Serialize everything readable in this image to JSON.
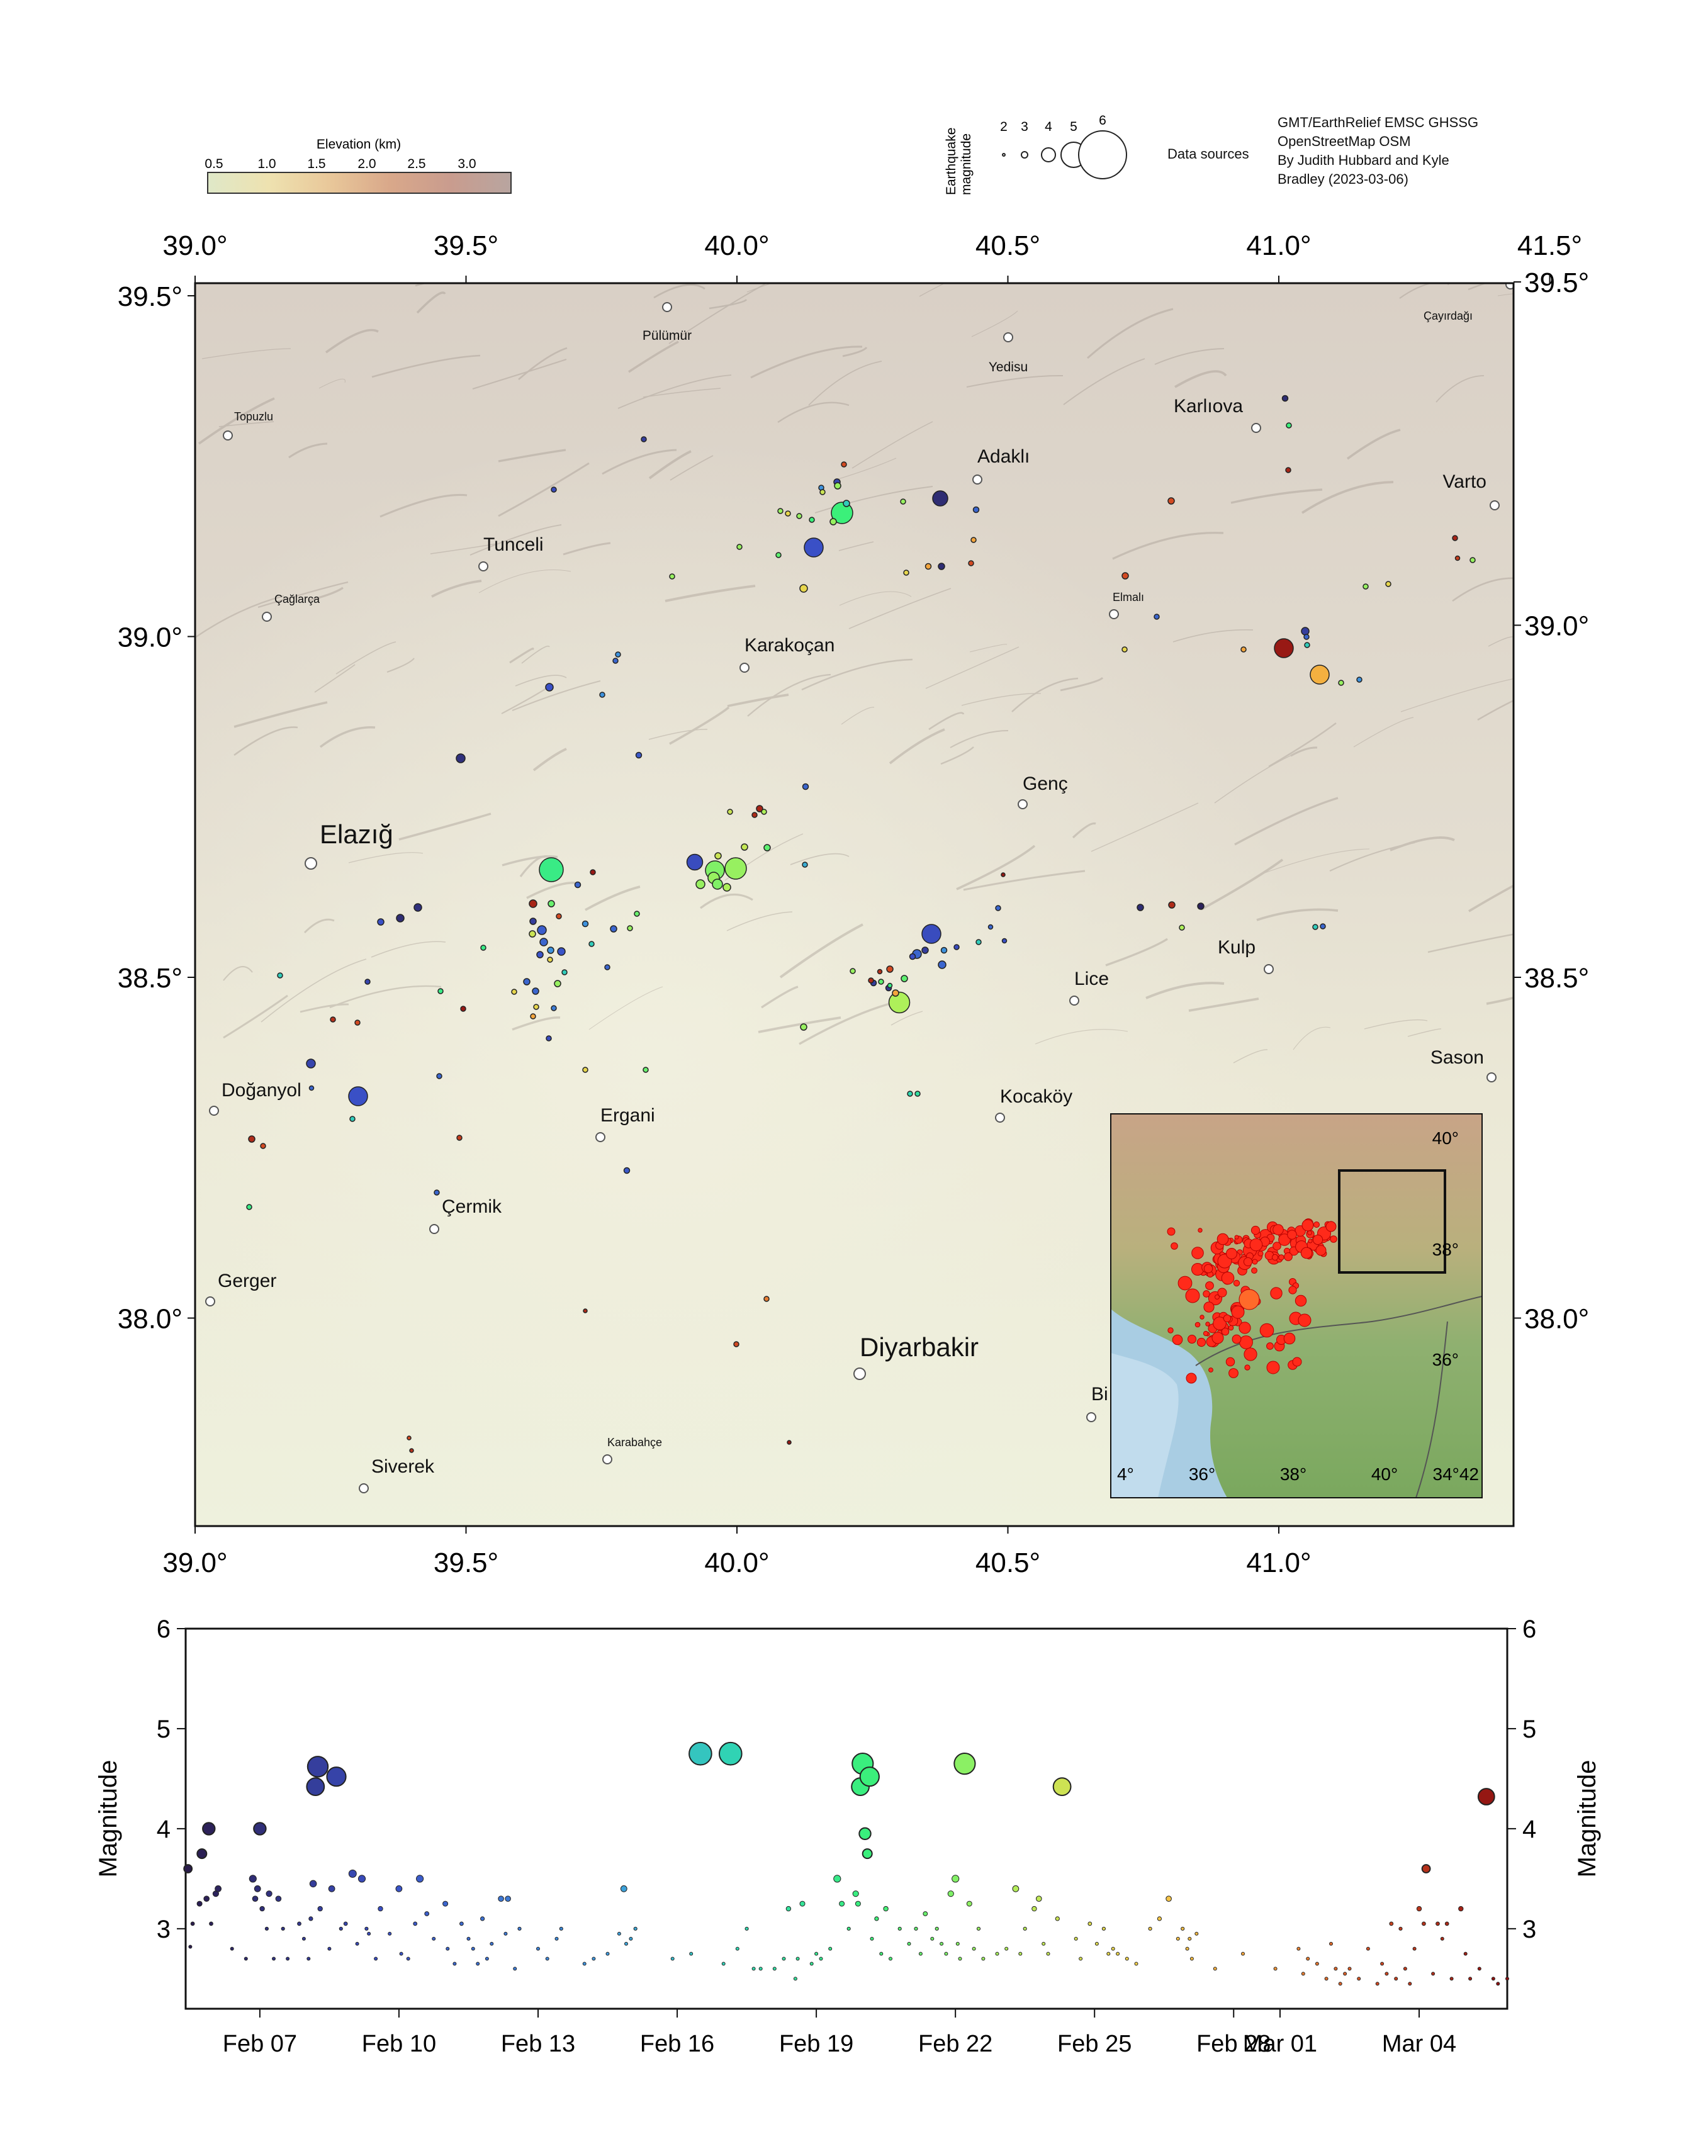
{
  "elevation_legend": {
    "title": "Elevation (km)",
    "ticks": [
      "0.5",
      "1.0",
      "1.5",
      "2.0",
      "2.5",
      "3.0"
    ],
    "colors": [
      "#dfe8c8",
      "#eee2b0",
      "#e9c89a",
      "#d9a88a",
      "#c99c8e",
      "#b8a5a0"
    ]
  },
  "magnitude_legend": {
    "title_line1": "Earthquake",
    "title_line2": "magnitude",
    "labels": [
      "2",
      "3",
      "4",
      "5",
      "6"
    ]
  },
  "data_sources": {
    "label": "Data sources",
    "lines": [
      "GMT/EarthRelief EMSC GHSSG",
      "OpenStreetMap OSM",
      "By Judith Hubbard and Kyle",
      "Bradley (2023-03-06)"
    ]
  },
  "map": {
    "lon_ticks_top": [
      "39.0°",
      "39.5°",
      "40.0°",
      "40.5°",
      "41.0°",
      "41.5°"
    ],
    "lon_ticks_bottom": [
      "39.0°",
      "39.5°",
      "40.0°",
      "40.5°",
      "41.0°"
    ],
    "lat_ticks_left": [
      "39.5°",
      "39.0°",
      "38.5°",
      "38.0°"
    ],
    "lat_ticks_right": [
      "39.5°",
      "39.0°",
      "38.5°",
      "38.0°"
    ],
    "cities": [
      {
        "name": "Pülümür",
        "size": "s"
      },
      {
        "name": "Yedisu",
        "size": "s"
      },
      {
        "name": "Çayırdağı",
        "size": "xs"
      },
      {
        "name": "Karlıova",
        "size": "m"
      },
      {
        "name": "Topuzlu",
        "size": "xs"
      },
      {
        "name": "Adaklı",
        "size": "m"
      },
      {
        "name": "Varto",
        "size": "m"
      },
      {
        "name": "Tunceli",
        "size": "m"
      },
      {
        "name": "Çağlarça",
        "size": "xs"
      },
      {
        "name": "Elmalı",
        "size": "xs"
      },
      {
        "name": "Karakoçan",
        "size": "m"
      },
      {
        "name": "Genç",
        "size": "m"
      },
      {
        "name": "Elazığ",
        "size": "l"
      },
      {
        "name": "Kulp",
        "size": "m"
      },
      {
        "name": "Lice",
        "size": "m"
      },
      {
        "name": "Sason",
        "size": "m"
      },
      {
        "name": "Doğanyol",
        "size": "m"
      },
      {
        "name": "Ergani",
        "size": "m"
      },
      {
        "name": "Kocaköy",
        "size": "m"
      },
      {
        "name": "Çermik",
        "size": "m"
      },
      {
        "name": "Gerger",
        "size": "m"
      },
      {
        "name": "Diyarbakir",
        "size": "l"
      },
      {
        "name": "Bi",
        "size": "m"
      },
      {
        "name": "Siverek",
        "size": "m"
      },
      {
        "name": "Karabahçe",
        "size": "xs"
      }
    ]
  },
  "inset": {
    "lat_labels": [
      "40°",
      "38°",
      "36°"
    ],
    "lon_labels": [
      "4°",
      "36°",
      "38°",
      "40°",
      "34°42"
    ]
  },
  "chart_data": {
    "type": "scatter",
    "xlabel": "",
    "ylabel": "Magnitude",
    "ylim": [
      2.2,
      6
    ],
    "yticks": [
      "3",
      "4",
      "5",
      "6"
    ],
    "x_ticks": [
      "Feb 07",
      "Feb 10",
      "Feb 13",
      "Feb 16",
      "Feb 19",
      "Feb 22",
      "Feb 25",
      "Feb 28",
      "Mar 01",
      "Mar 04"
    ],
    "x_ticks_day": [
      7,
      10,
      13,
      16,
      19,
      22,
      25,
      28,
      29,
      32
    ],
    "xlim_day": [
      5.4,
      33.9
    ],
    "color_scale": "time (Feb 06 dark purple → Mar 06 dark red)",
    "points": [
      [
        5.45,
        3.6
      ],
      [
        5.5,
        2.82
      ],
      [
        5.55,
        3.05
      ],
      [
        5.7,
        3.25
      ],
      [
        5.75,
        3.75
      ],
      [
        5.85,
        3.3
      ],
      [
        5.9,
        4.0
      ],
      [
        5.95,
        3.05
      ],
      [
        6.05,
        3.35
      ],
      [
        6.1,
        3.4
      ],
      [
        6.4,
        2.8
      ],
      [
        6.7,
        2.7
      ],
      [
        6.85,
        3.5
      ],
      [
        6.9,
        3.3
      ],
      [
        6.95,
        3.4
      ],
      [
        7.0,
        4.0
      ],
      [
        7.05,
        3.2
      ],
      [
        7.15,
        3.0
      ],
      [
        7.2,
        3.35
      ],
      [
        7.3,
        2.7
      ],
      [
        7.4,
        3.3
      ],
      [
        7.5,
        3.0
      ],
      [
        7.6,
        2.7
      ],
      [
        7.85,
        3.05
      ],
      [
        7.95,
        2.9
      ],
      [
        8.05,
        2.7
      ],
      [
        8.1,
        3.1
      ],
      [
        8.15,
        3.45
      ],
      [
        8.2,
        4.42
      ],
      [
        8.25,
        4.62
      ],
      [
        8.3,
        3.2
      ],
      [
        8.5,
        2.8
      ],
      [
        8.55,
        3.4
      ],
      [
        8.65,
        4.52
      ],
      [
        8.75,
        3.0
      ],
      [
        8.85,
        3.05
      ],
      [
        9.0,
        3.55
      ],
      [
        9.1,
        2.85
      ],
      [
        9.2,
        3.5
      ],
      [
        9.3,
        3.0
      ],
      [
        9.35,
        2.95
      ],
      [
        9.5,
        2.7
      ],
      [
        9.6,
        3.2
      ],
      [
        9.8,
        2.95
      ],
      [
        10.0,
        3.4
      ],
      [
        10.05,
        2.75
      ],
      [
        10.2,
        2.7
      ],
      [
        10.35,
        3.05
      ],
      [
        10.45,
        3.5
      ],
      [
        10.6,
        3.15
      ],
      [
        10.75,
        2.9
      ],
      [
        11.0,
        3.25
      ],
      [
        11.05,
        2.8
      ],
      [
        11.2,
        2.65
      ],
      [
        11.35,
        3.05
      ],
      [
        11.5,
        2.9
      ],
      [
        11.6,
        2.8
      ],
      [
        11.7,
        2.65
      ],
      [
        11.8,
        3.1
      ],
      [
        11.9,
        2.7
      ],
      [
        12.0,
        2.85
      ],
      [
        12.2,
        3.3
      ],
      [
        12.3,
        2.95
      ],
      [
        12.35,
        3.3
      ],
      [
        12.5,
        2.6
      ],
      [
        12.6,
        3.0
      ],
      [
        13.0,
        2.8
      ],
      [
        13.2,
        2.7
      ],
      [
        13.4,
        2.9
      ],
      [
        13.5,
        3.0
      ],
      [
        14.0,
        2.65
      ],
      [
        14.2,
        2.7
      ],
      [
        14.5,
        2.75
      ],
      [
        14.75,
        2.95
      ],
      [
        14.85,
        3.4
      ],
      [
        14.9,
        2.85
      ],
      [
        15.0,
        2.9
      ],
      [
        15.1,
        3.0
      ],
      [
        15.9,
        2.7
      ],
      [
        16.3,
        2.75
      ],
      [
        16.5,
        4.75
      ],
      [
        17.0,
        2.65
      ],
      [
        17.15,
        4.75
      ],
      [
        17.3,
        2.8
      ],
      [
        17.5,
        3.0
      ],
      [
        17.65,
        2.6
      ],
      [
        17.8,
        2.6
      ],
      [
        18.1,
        2.6
      ],
      [
        18.3,
        2.7
      ],
      [
        18.4,
        3.2
      ],
      [
        18.55,
        2.5
      ],
      [
        18.6,
        2.7
      ],
      [
        18.7,
        3.25
      ],
      [
        18.9,
        2.65
      ],
      [
        19.0,
        2.75
      ],
      [
        19.1,
        2.7
      ],
      [
        19.3,
        2.8
      ],
      [
        19.45,
        3.5
      ],
      [
        19.55,
        3.25
      ],
      [
        19.7,
        3.0
      ],
      [
        19.85,
        3.35
      ],
      [
        19.9,
        3.25
      ],
      [
        19.95,
        4.42
      ],
      [
        20.0,
        4.65
      ],
      [
        20.05,
        3.95
      ],
      [
        20.1,
        3.75
      ],
      [
        20.15,
        4.52
      ],
      [
        20.2,
        2.9
      ],
      [
        20.3,
        3.1
      ],
      [
        20.4,
        2.75
      ],
      [
        20.5,
        3.2
      ],
      [
        20.6,
        2.7
      ],
      [
        20.8,
        3.0
      ],
      [
        21.0,
        2.85
      ],
      [
        21.15,
        3.0
      ],
      [
        21.25,
        2.75
      ],
      [
        21.35,
        3.15
      ],
      [
        21.5,
        2.9
      ],
      [
        21.6,
        3.0
      ],
      [
        21.7,
        2.85
      ],
      [
        21.8,
        2.75
      ],
      [
        21.9,
        3.35
      ],
      [
        22.0,
        3.5
      ],
      [
        22.05,
        2.85
      ],
      [
        22.1,
        2.7
      ],
      [
        22.2,
        4.65
      ],
      [
        22.3,
        3.25
      ],
      [
        22.4,
        2.8
      ],
      [
        22.5,
        3.0
      ],
      [
        22.6,
        2.7
      ],
      [
        22.9,
        2.75
      ],
      [
        23.1,
        2.8
      ],
      [
        23.3,
        3.4
      ],
      [
        23.4,
        2.75
      ],
      [
        23.5,
        3.0
      ],
      [
        23.7,
        3.2
      ],
      [
        23.8,
        3.3
      ],
      [
        23.9,
        2.85
      ],
      [
        24.0,
        2.75
      ],
      [
        24.2,
        3.1
      ],
      [
        24.3,
        4.42
      ],
      [
        24.6,
        2.9
      ],
      [
        24.7,
        2.7
      ],
      [
        24.9,
        3.05
      ],
      [
        25.05,
        2.85
      ],
      [
        25.2,
        3.0
      ],
      [
        25.3,
        2.75
      ],
      [
        25.4,
        2.8
      ],
      [
        25.5,
        2.75
      ],
      [
        25.7,
        2.7
      ],
      [
        25.9,
        2.65
      ],
      [
        26.2,
        3.0
      ],
      [
        26.4,
        3.1
      ],
      [
        26.6,
        3.3
      ],
      [
        26.8,
        2.9
      ],
      [
        26.9,
        3.0
      ],
      [
        27.0,
        2.8
      ],
      [
        27.05,
        2.9
      ],
      [
        27.1,
        2.7
      ],
      [
        27.2,
        2.95
      ],
      [
        27.6,
        2.6
      ],
      [
        28.2,
        2.75
      ],
      [
        28.9,
        2.6
      ],
      [
        29.4,
        2.8
      ],
      [
        29.5,
        2.55
      ],
      [
        29.6,
        2.7
      ],
      [
        29.8,
        2.65
      ],
      [
        30.0,
        2.5
      ],
      [
        30.1,
        2.85
      ],
      [
        30.2,
        2.6
      ],
      [
        30.3,
        2.45
      ],
      [
        30.4,
        2.55
      ],
      [
        30.5,
        2.6
      ],
      [
        30.7,
        2.5
      ],
      [
        30.9,
        2.8
      ],
      [
        31.1,
        2.45
      ],
      [
        31.2,
        2.65
      ],
      [
        31.3,
        2.55
      ],
      [
        31.4,
        3.05
      ],
      [
        31.5,
        2.5
      ],
      [
        31.6,
        3.0
      ],
      [
        31.7,
        2.6
      ],
      [
        31.8,
        2.45
      ],
      [
        31.9,
        2.8
      ],
      [
        32.0,
        3.2
      ],
      [
        32.1,
        3.05
      ],
      [
        32.15,
        3.6
      ],
      [
        32.3,
        2.55
      ],
      [
        32.4,
        3.05
      ],
      [
        32.5,
        2.9
      ],
      [
        32.6,
        3.05
      ],
      [
        32.7,
        2.5
      ],
      [
        32.9,
        3.2
      ],
      [
        33.0,
        2.75
      ],
      [
        33.1,
        2.5
      ],
      [
        33.3,
        2.6
      ],
      [
        33.45,
        4.32
      ],
      [
        33.6,
        2.5
      ],
      [
        33.7,
        2.45
      ],
      [
        33.9,
        2.5
      ]
    ]
  }
}
